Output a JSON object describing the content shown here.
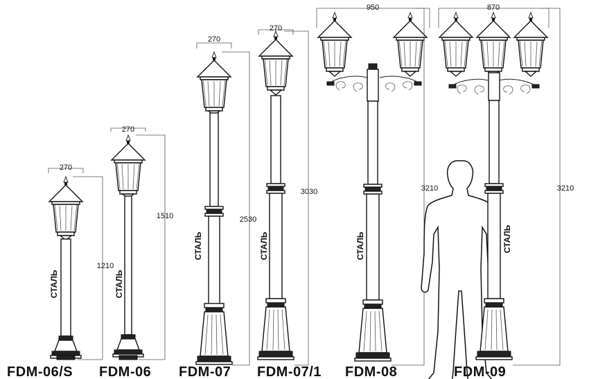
{
  "material_label": "СТАЛЬ",
  "lamps": [
    {
      "model": "FDM-06/S",
      "width": "270",
      "height": "1210"
    },
    {
      "model": "FDM-06",
      "width": "270",
      "height": "1510"
    },
    {
      "model": "FDM-07",
      "width": "270",
      "height": "2530"
    },
    {
      "model": "FDM-07/1",
      "width": "270",
      "height": "3030"
    },
    {
      "model": "FDM-08",
      "width": "950",
      "height": "3210"
    },
    {
      "model": "FDM-09",
      "width": "870",
      "height": "3210"
    }
  ]
}
